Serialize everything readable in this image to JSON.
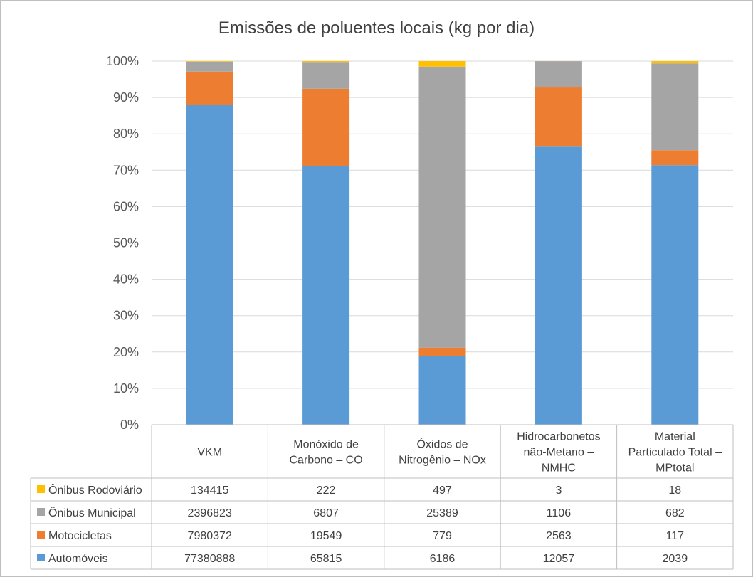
{
  "chart_data": {
    "type": "bar",
    "stacked": "percent",
    "title": "Emissões de poluentes locais (kg por dia)",
    "categories": [
      [
        "VKM"
      ],
      [
        "Monóxido de",
        "Carbono – CO"
      ],
      [
        "Óxidos de",
        "Nitrogênio – NOx"
      ],
      [
        "Hidrocarbonetos",
        "não-Metano –",
        "NMHC"
      ],
      [
        "Material",
        "Particulado Total –",
        "MPtotal"
      ]
    ],
    "series": [
      {
        "name": "Automóveis",
        "color": "#5b9bd5",
        "values": [
          77380888,
          65815,
          6186,
          12057,
          2039
        ]
      },
      {
        "name": "Motocicletas",
        "color": "#ed7d31",
        "values": [
          7980372,
          19549,
          779,
          2563,
          117
        ]
      },
      {
        "name": "Ônibus Municipal",
        "color": "#a5a5a5",
        "values": [
          2396823,
          6807,
          25389,
          1106,
          682
        ]
      },
      {
        "name": "Ônibus Rodoviário",
        "color": "#ffc000",
        "values": [
          134415,
          222,
          497,
          3,
          18
        ]
      }
    ],
    "table_order": [
      "Ônibus Rodoviário",
      "Ônibus Municipal",
      "Motocicletas",
      "Automóveis"
    ],
    "ylim": [
      0,
      100
    ],
    "yticks": [
      "0%",
      "10%",
      "20%",
      "30%",
      "40%",
      "50%",
      "60%",
      "70%",
      "80%",
      "90%",
      "100%"
    ],
    "grid": true,
    "legend": "data-table"
  }
}
